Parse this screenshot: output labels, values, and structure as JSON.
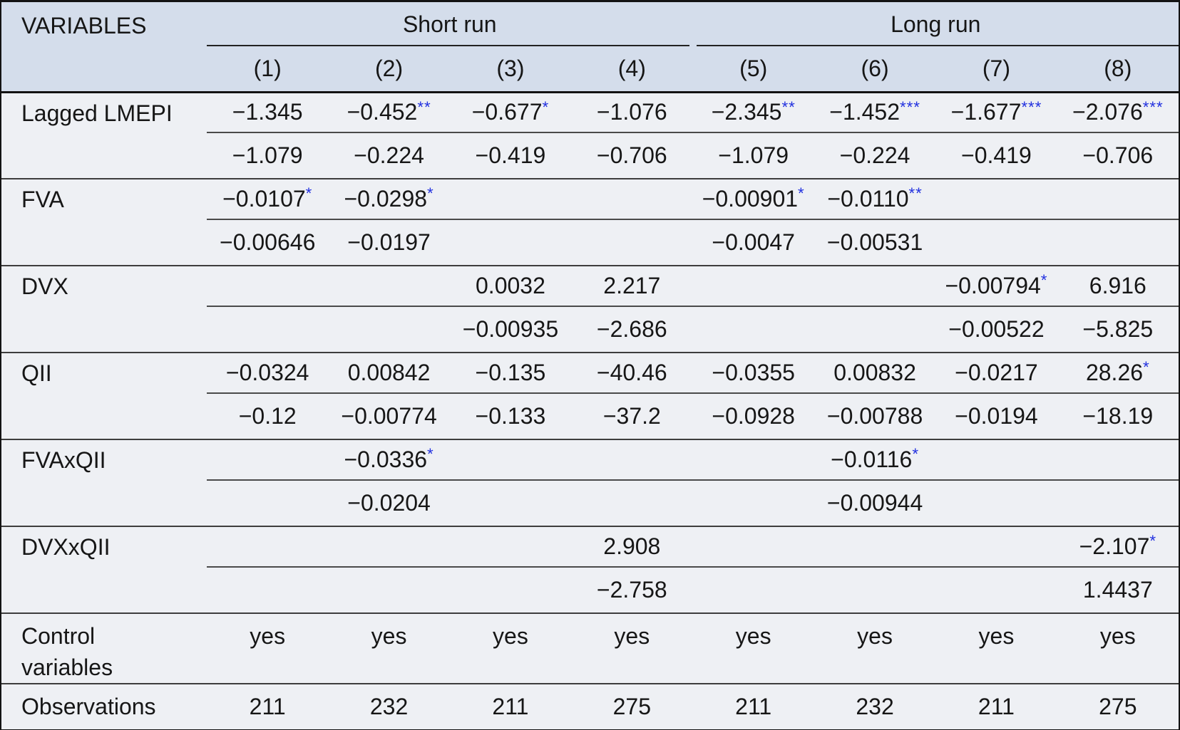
{
  "header": {
    "variables_label": "VARIABLES",
    "col_groups": [
      {
        "label": "Short run",
        "span": 4
      },
      {
        "label": "Long run",
        "span": 4
      }
    ],
    "columns": [
      "(1)",
      "(2)",
      "(3)",
      "(4)",
      "(5)",
      "(6)",
      "(7)",
      "(8)"
    ]
  },
  "groups": [
    {
      "label": "Lagged LMEPI",
      "coef": [
        {
          "v": "−1.345",
          "s": ""
        },
        {
          "v": "−0.452",
          "s": "**"
        },
        {
          "v": "−0.677",
          "s": "*"
        },
        {
          "v": "−1.076",
          "s": ""
        },
        {
          "v": "−2.345",
          "s": "**"
        },
        {
          "v": "−1.452",
          "s": "***"
        },
        {
          "v": "−1.677",
          "s": "***"
        },
        {
          "v": "−2.076",
          "s": "***"
        }
      ],
      "se": [
        "−1.079",
        "−0.224",
        "−0.419",
        "−0.706",
        "−1.079",
        "−0.224",
        "−0.419",
        "−0.706"
      ]
    },
    {
      "label": "FVA",
      "coef": [
        {
          "v": "−0.0107",
          "s": "*"
        },
        {
          "v": "−0.0298",
          "s": "*"
        },
        {
          "v": "",
          "s": ""
        },
        {
          "v": "",
          "s": ""
        },
        {
          "v": "−0.00901",
          "s": "*"
        },
        {
          "v": "−0.0110",
          "s": "**"
        },
        {
          "v": "",
          "s": ""
        },
        {
          "v": "",
          "s": ""
        }
      ],
      "se": [
        "−0.00646",
        "−0.0197",
        "",
        "",
        "−0.0047",
        "−0.00531",
        "",
        ""
      ]
    },
    {
      "label": "DVX",
      "coef": [
        {
          "v": "",
          "s": ""
        },
        {
          "v": "",
          "s": ""
        },
        {
          "v": "0.0032",
          "s": ""
        },
        {
          "v": "2.217",
          "s": ""
        },
        {
          "v": "",
          "s": ""
        },
        {
          "v": "",
          "s": ""
        },
        {
          "v": "−0.00794",
          "s": "*"
        },
        {
          "v": "6.916",
          "s": ""
        }
      ],
      "se": [
        "",
        "",
        "−0.00935",
        "−2.686",
        "",
        "",
        "−0.00522",
        "−5.825"
      ]
    },
    {
      "label": "QII",
      "coef": [
        {
          "v": "−0.0324",
          "s": ""
        },
        {
          "v": "0.00842",
          "s": ""
        },
        {
          "v": "−0.135",
          "s": ""
        },
        {
          "v": "−40.46",
          "s": ""
        },
        {
          "v": "−0.0355",
          "s": ""
        },
        {
          "v": "0.00832",
          "s": ""
        },
        {
          "v": "−0.0217",
          "s": ""
        },
        {
          "v": "28.26",
          "s": "*"
        }
      ],
      "se": [
        "−0.12",
        "−0.00774",
        "−0.133",
        "−37.2",
        "−0.0928",
        "−0.00788",
        "−0.0194",
        "−18.19"
      ]
    },
    {
      "label": "FVAxQII",
      "coef": [
        {
          "v": "",
          "s": ""
        },
        {
          "v": "−0.0336",
          "s": "*"
        },
        {
          "v": "",
          "s": ""
        },
        {
          "v": "",
          "s": ""
        },
        {
          "v": "",
          "s": ""
        },
        {
          "v": "−0.0116",
          "s": "*"
        },
        {
          "v": "",
          "s": ""
        },
        {
          "v": "",
          "s": ""
        }
      ],
      "se": [
        "",
        "−0.0204",
        "",
        "",
        "",
        "−0.00944",
        "",
        ""
      ]
    },
    {
      "label": "DVXxQII",
      "coef": [
        {
          "v": "",
          "s": ""
        },
        {
          "v": "",
          "s": ""
        },
        {
          "v": "",
          "s": ""
        },
        {
          "v": "2.908",
          "s": ""
        },
        {
          "v": "",
          "s": ""
        },
        {
          "v": "",
          "s": ""
        },
        {
          "v": "",
          "s": ""
        },
        {
          "v": "−2.107",
          "s": "*"
        }
      ],
      "se": [
        "",
        "",
        "",
        "−2.758",
        "",
        "",
        "",
        "1.4437"
      ]
    }
  ],
  "control_row": {
    "label": "Control variables",
    "values": [
      "yes",
      "yes",
      "yes",
      "yes",
      "yes",
      "yes",
      "yes",
      "yes"
    ]
  },
  "observations_row": {
    "label": "Observations",
    "values": [
      "211",
      "232",
      "211",
      "275",
      "211",
      "232",
      "211",
      "275"
    ]
  },
  "colors": {
    "header_bg": "#d4ddeb",
    "body_bg": "#eef0f4",
    "significance_star": "#2130df",
    "rule": "#3d3d3d",
    "outer_border": "#131313"
  }
}
